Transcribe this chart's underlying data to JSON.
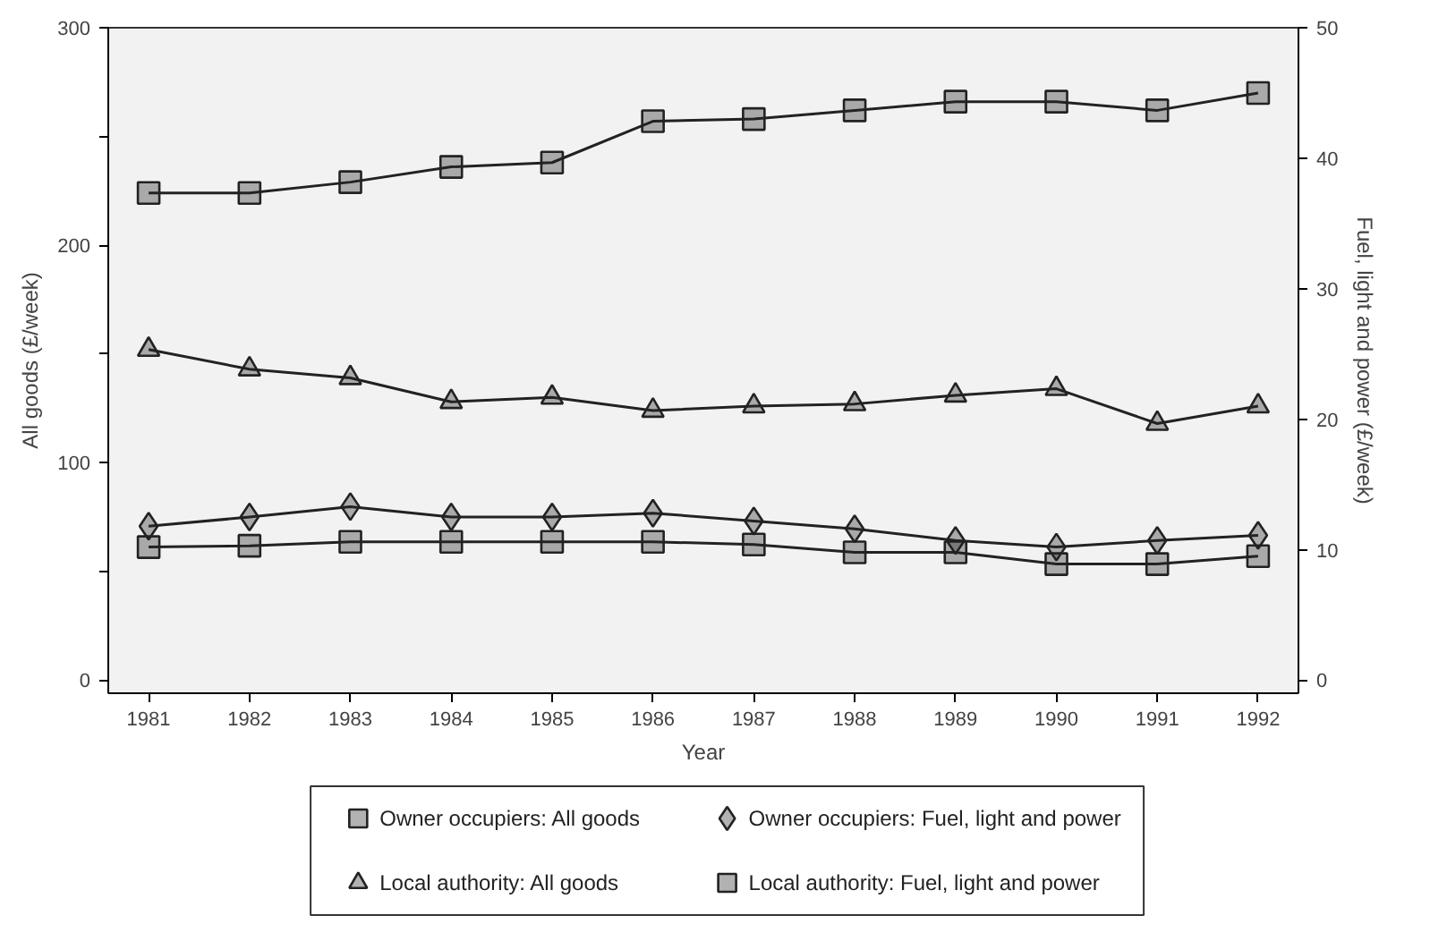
{
  "chart_data": {
    "type": "line",
    "xlabel": "Year",
    "ylabel": "All goods (£/week)",
    "y2label": "Fuel, light and power (£/week)",
    "x": [
      1981,
      1982,
      1983,
      1984,
      1985,
      1986,
      1987,
      1988,
      1989,
      1990,
      1991,
      1992
    ],
    "xlim": [
      1980.6,
      1992.4
    ],
    "xticks": [
      1981,
      1982,
      1983,
      1984,
      1985,
      1986,
      1987,
      1988,
      1989,
      1990,
      1991,
      1992
    ],
    "ylim": [
      -6,
      300
    ],
    "yticks": [
      0,
      {
        "value": 50,
        "label": null
      },
      100,
      {
        "value": 150,
        "label": null
      },
      200,
      {
        "value": 250,
        "label": null
      },
      300
    ],
    "y2lim": [
      -1,
      50
    ],
    "y2ticks": [
      0,
      10,
      20,
      30,
      40,
      50
    ],
    "grid": false,
    "legend": "bottom",
    "series": [
      {
        "name": "Owner occupiers: All goods",
        "color": "#222222",
        "marker": "square",
        "values": [
          224,
          224,
          229,
          236,
          238,
          257,
          258,
          262,
          266,
          266,
          262,
          270
        ]
      },
      {
        "name": "Owner occupiers: Fuel, light and power",
        "color": "#222222",
        "marker": "diamond",
        "axis": "y2",
        "values": [
          11.8,
          12.5,
          13.3,
          12.5,
          12.5,
          12.8,
          12.2,
          11.6,
          10.7,
          10.2,
          10.7,
          11.1
        ]
      },
      {
        "name": "Local authority: All goods",
        "color": "#222222",
        "marker": "triangle",
        "values": [
          152,
          143,
          139,
          128,
          130,
          124,
          126,
          127,
          131,
          134,
          118,
          126
        ]
      },
      {
        "name": "Local authority: Fuel, light and power",
        "color": "#222222",
        "marker": "square",
        "axis": "y2",
        "values": [
          10.2,
          10.3,
          10.6,
          10.6,
          10.6,
          10.6,
          10.4,
          9.8,
          9.8,
          8.9,
          8.9,
          9.5
        ]
      }
    ]
  }
}
